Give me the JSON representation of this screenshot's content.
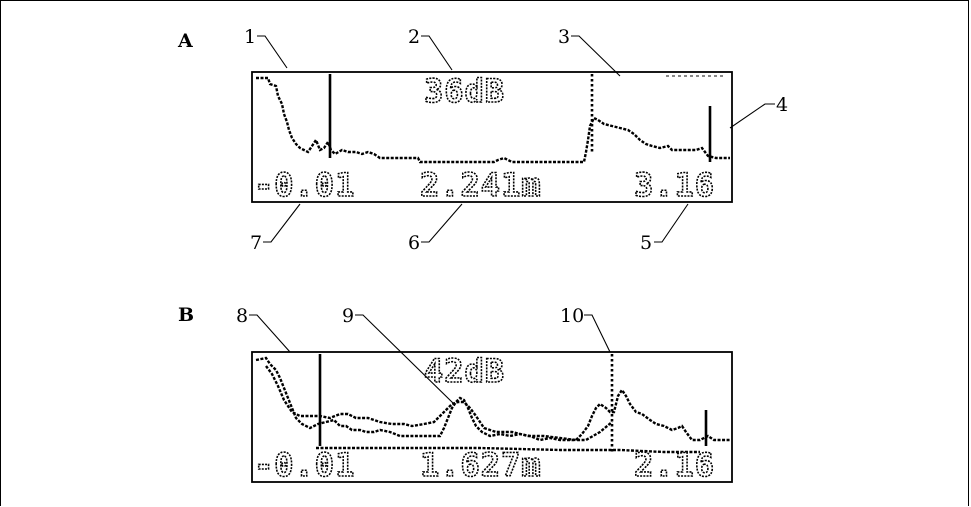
{
  "panels": {
    "a": {
      "letter": "A",
      "lcd": {
        "db": "36dB",
        "left": "-0.01",
        "center": "2.241m",
        "right": "3.16"
      },
      "callouts": [
        "1",
        "2",
        "3",
        "4",
        "5",
        "6",
        "7"
      ]
    },
    "b": {
      "letter": "B",
      "lcd": {
        "db": "42dB",
        "left": "-0.01",
        "center": "1.627m",
        "right": "2.16"
      },
      "callouts": [
        "8",
        "9",
        "10"
      ]
    }
  }
}
